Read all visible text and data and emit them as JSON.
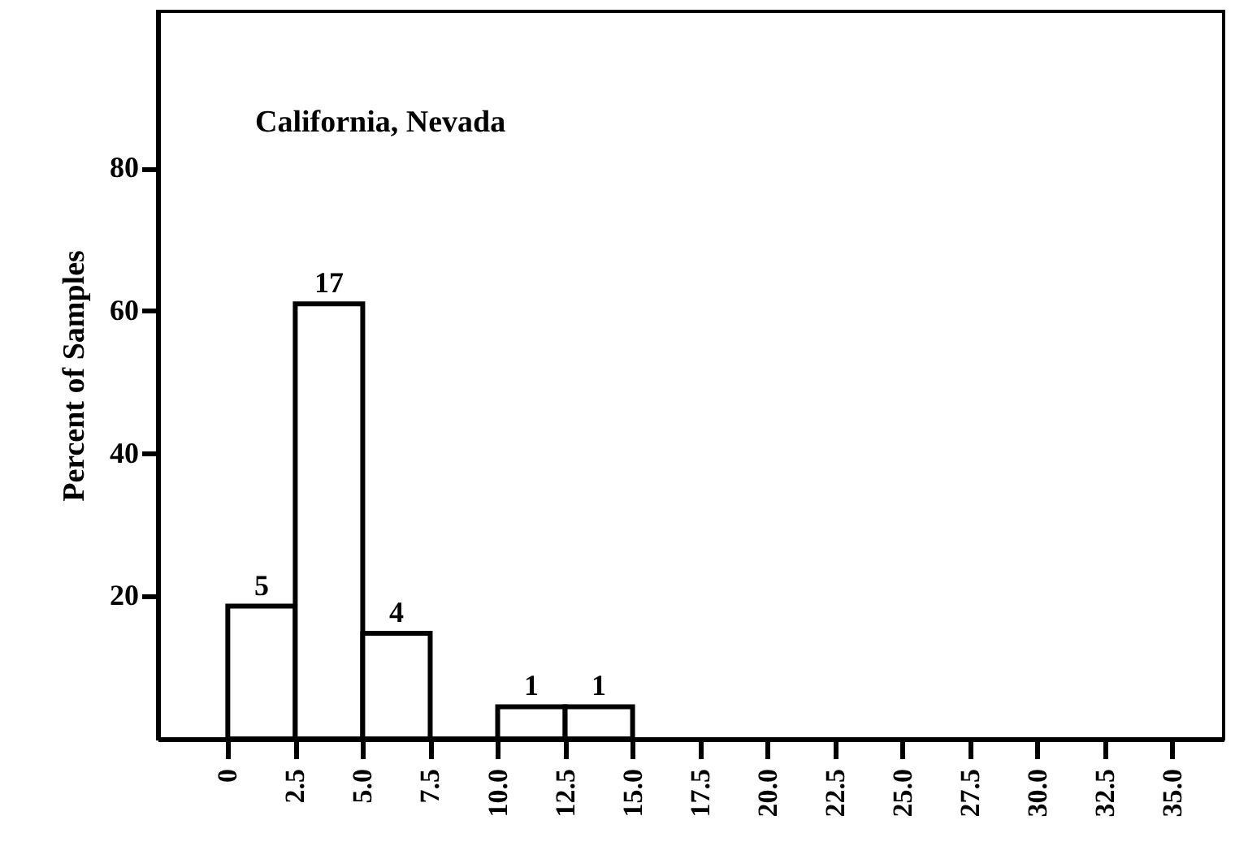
{
  "chart_data": {
    "type": "histogram",
    "ylabel": "Percent of Samples",
    "annotations": [
      "California, Nevada",
      {
        "text": "5",
        "x": 1.25,
        "y": 18.6
      },
      {
        "text": "17",
        "x": 3.75,
        "y": 61
      },
      {
        "text": "4",
        "x": 6.25,
        "y": 14.8
      },
      {
        "text": "1",
        "x": 11.25,
        "y": 4.5
      },
      {
        "text": "1",
        "x": 13.75,
        "y": 4.5
      }
    ],
    "bins": [
      0,
      2.5,
      5,
      7.5,
      10,
      12.5,
      15
    ],
    "values": [
      18.6,
      61,
      14.8,
      0,
      4.5,
      4.5
    ],
    "color": "#000000",
    "xlim": [
      -2.6,
      36.9
    ],
    "xticks": [
      {
        "value": 0,
        "label": "0"
      },
      {
        "value": 2.5,
        "label": "2.5"
      },
      {
        "value": 5,
        "label": "5.0"
      },
      {
        "value": 7.5,
        "label": "7.5"
      },
      {
        "value": 10,
        "label": "10.0"
      },
      {
        "value": 12.5,
        "label": "12.5"
      },
      {
        "value": 15,
        "label": "15.0"
      },
      {
        "value": 17.5,
        "label": "17.5"
      },
      {
        "value": 20,
        "label": "20.0"
      },
      {
        "value": 22.5,
        "label": "22.5"
      },
      {
        "value": 25,
        "label": "25.0"
      },
      {
        "value": 27.5,
        "label": "27.5"
      },
      {
        "value": 30,
        "label": "30.0"
      },
      {
        "value": 32.5,
        "label": "32.5"
      },
      {
        "value": 35,
        "label": "35.0"
      }
    ],
    "ylim": [
      0,
      102
    ],
    "yticks": [
      20,
      40,
      60,
      80
    ],
    "grid": false
  }
}
